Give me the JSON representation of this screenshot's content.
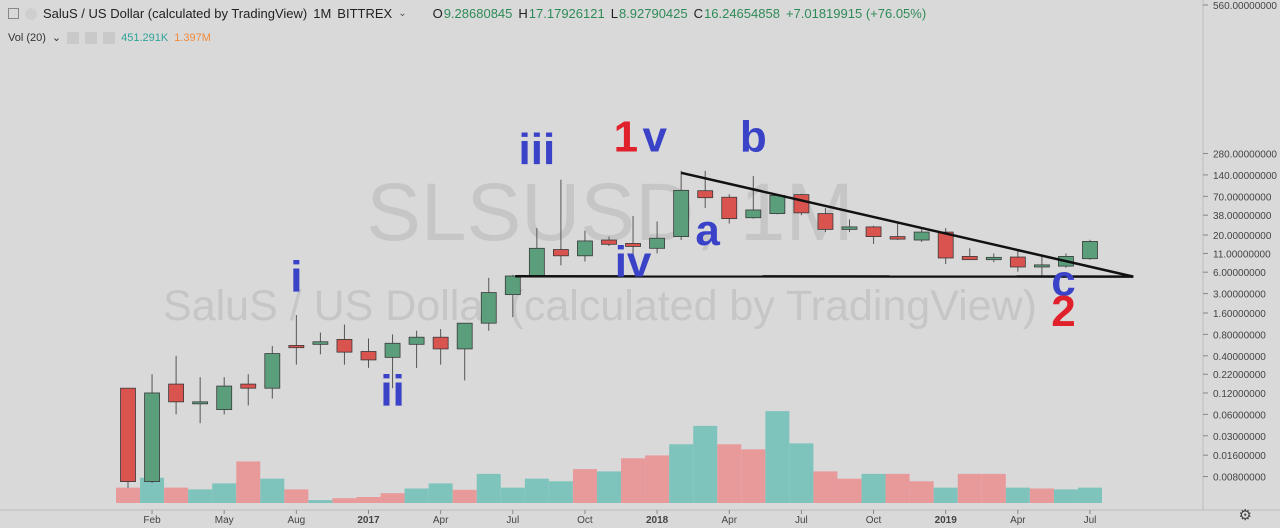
{
  "header": {
    "title": "SaluS / US Dollar (calculated by TradingView)",
    "interval": "1M",
    "exchange": "BITTREX",
    "o_label": "O",
    "o": "9.28680845",
    "h_label": "H",
    "h": "17.17926121",
    "l_label": "L",
    "l": "8.92790425",
    "c_label": "C",
    "c": "16.24654858",
    "change": "+7.01819915 (+76.05%)"
  },
  "volume_legend": {
    "label": "Vol (20)",
    "v1": "451.291K",
    "v2": "1.397M"
  },
  "watermark": {
    "line1": "SLSUSD, 1M",
    "line2": "SaluS / US Dollar (calculated by TradingView)"
  },
  "colors": {
    "up": "#5b9e7c",
    "down": "#d9534f",
    "vol_up": "#7ec4bd",
    "vol_down": "#e8999a",
    "wave_blue": "#3a43c8",
    "wave_red": "#e0202a"
  },
  "chart_data": {
    "type": "candlestick",
    "x_axis_labels": [
      "Feb",
      "May",
      "Aug",
      "2017",
      "Apr",
      "Jul",
      "Oct",
      "2018",
      "Apr",
      "Jul",
      "Oct",
      "2019",
      "Apr",
      "Jul"
    ],
    "y_axis_labels": [
      "560.00000000",
      "280.00000000",
      "140.00000000",
      "70.00000000",
      "38.00000000",
      "20.00000000",
      "11.00000000",
      "6.00000000",
      "3.00000000",
      "1.60000000",
      "0.80000000",
      "0.40000000",
      "0.22000000",
      "0.12000000",
      "0.06000000",
      "0.03000000",
      "0.01600000",
      "0.00800000"
    ],
    "y_scale": "log",
    "candles": [
      {
        "o": 0.14,
        "h": 0.14,
        "l": 0.0055,
        "c": 0.0068
      },
      {
        "o": 0.0068,
        "h": 0.22,
        "l": 0.0065,
        "c": 0.12
      },
      {
        "o": 0.16,
        "h": 0.4,
        "l": 0.06,
        "c": 0.09
      },
      {
        "o": 0.09,
        "h": 0.2,
        "l": 0.045,
        "c": 0.09
      },
      {
        "o": 0.07,
        "h": 0.2,
        "l": 0.06,
        "c": 0.15
      },
      {
        "o": 0.16,
        "h": 0.22,
        "l": 0.08,
        "c": 0.14
      },
      {
        "o": 0.14,
        "h": 0.55,
        "l": 0.1,
        "c": 0.43
      },
      {
        "o": 0.56,
        "h": 1.5,
        "l": 0.3,
        "c": 0.52
      },
      {
        "o": 0.58,
        "h": 0.85,
        "l": 0.42,
        "c": 0.63
      },
      {
        "o": 0.68,
        "h": 1.1,
        "l": 0.3,
        "c": 0.45
      },
      {
        "o": 0.46,
        "h": 0.7,
        "l": 0.27,
        "c": 0.35
      },
      {
        "o": 0.38,
        "h": 0.8,
        "l": 0.14,
        "c": 0.6
      },
      {
        "o": 0.58,
        "h": 0.9,
        "l": 0.27,
        "c": 0.73
      },
      {
        "o": 0.73,
        "h": 0.95,
        "l": 0.3,
        "c": 0.5
      },
      {
        "o": 0.5,
        "h": 1.0,
        "l": 0.18,
        "c": 1.15
      },
      {
        "o": 1.15,
        "h": 5.0,
        "l": 0.9,
        "c": 3.1
      },
      {
        "o": 2.9,
        "h": 5.5,
        "l": 1.4,
        "c": 5.3
      },
      {
        "o": 5.3,
        "h": 25,
        "l": 5.1,
        "c": 13
      },
      {
        "o": 12.5,
        "h": 120,
        "l": 7.5,
        "c": 10.2
      },
      {
        "o": 10.2,
        "h": 23,
        "l": 8.5,
        "c": 16.5
      },
      {
        "o": 17,
        "h": 19,
        "l": 14,
        "c": 14.8
      },
      {
        "o": 15.2,
        "h": 37,
        "l": 11,
        "c": 13.8
      },
      {
        "o": 13,
        "h": 31,
        "l": 11,
        "c": 18
      },
      {
        "o": 19,
        "h": 160,
        "l": 17,
        "c": 85
      },
      {
        "o": 84,
        "h": 160,
        "l": 48,
        "c": 67
      },
      {
        "o": 68,
        "h": 75,
        "l": 29,
        "c": 34
      },
      {
        "o": 35,
        "h": 135,
        "l": 34,
        "c": 45
      },
      {
        "o": 40,
        "h": 74,
        "l": 39,
        "c": 72
      },
      {
        "o": 74,
        "h": 76,
        "l": 38,
        "c": 41
      },
      {
        "o": 40,
        "h": 48,
        "l": 22,
        "c": 24
      },
      {
        "o": 24,
        "h": 33,
        "l": 22,
        "c": 26
      },
      {
        "o": 26,
        "h": 27,
        "l": 15,
        "c": 19
      },
      {
        "o": 19,
        "h": 30,
        "l": 17,
        "c": 17.5
      },
      {
        "o": 17,
        "h": 25,
        "l": 16,
        "c": 22
      },
      {
        "o": 22,
        "h": 25,
        "l": 7.8,
        "c": 9.5
      },
      {
        "o": 10,
        "h": 13,
        "l": 8.9,
        "c": 9
      },
      {
        "o": 9,
        "h": 11,
        "l": 8.3,
        "c": 9.7
      },
      {
        "o": 9.8,
        "h": 12,
        "l": 6.1,
        "c": 7.1
      },
      {
        "o": 7.1,
        "h": 10.5,
        "l": 5.4,
        "c": 7.6
      },
      {
        "o": 7.3,
        "h": 11,
        "l": 6.9,
        "c": 10
      },
      {
        "o": 9.29,
        "h": 17.18,
        "l": 8.93,
        "c": 16.25
      }
    ],
    "volume": [
      {
        "v": 0.0068,
        "up": false
      },
      {
        "v": 0.0096,
        "up": true
      },
      {
        "v": 0.0068,
        "up": false
      },
      {
        "v": 0.0064,
        "up": true
      },
      {
        "v": 0.0079,
        "up": true
      },
      {
        "v": 0.017,
        "up": false
      },
      {
        "v": 0.0093,
        "up": true
      },
      {
        "v": 0.0064,
        "up": false
      },
      {
        "v": 0.0044,
        "up": true
      },
      {
        "v": 0.0047,
        "up": false
      },
      {
        "v": 0.0049,
        "up": false
      },
      {
        "v": 0.0056,
        "up": false
      },
      {
        "v": 0.0066,
        "up": true
      },
      {
        "v": 0.0079,
        "up": true
      },
      {
        "v": 0.0063,
        "up": false
      },
      {
        "v": 0.011,
        "up": true
      },
      {
        "v": 0.0068,
        "up": true
      },
      {
        "v": 0.0093,
        "up": true
      },
      {
        "v": 0.0085,
        "up": true
      },
      {
        "v": 0.013,
        "up": false
      },
      {
        "v": 0.012,
        "up": true
      },
      {
        "v": 0.019,
        "up": false
      },
      {
        "v": 0.021,
        "up": false
      },
      {
        "v": 0.031,
        "up": true
      },
      {
        "v": 0.059,
        "up": true
      },
      {
        "v": 0.031,
        "up": false
      },
      {
        "v": 0.026,
        "up": false
      },
      {
        "v": 0.099,
        "up": true
      },
      {
        "v": 0.032,
        "up": true
      },
      {
        "v": 0.012,
        "up": false
      },
      {
        "v": 0.0093,
        "up": false
      },
      {
        "v": 0.011,
        "up": true
      },
      {
        "v": 0.011,
        "up": false
      },
      {
        "v": 0.0085,
        "up": false
      },
      {
        "v": 0.0068,
        "up": true
      },
      {
        "v": 0.011,
        "up": false
      },
      {
        "v": 0.011,
        "up": false
      },
      {
        "v": 0.0068,
        "up": true
      },
      {
        "v": 0.0066,
        "up": false
      },
      {
        "v": 0.0064,
        "up": true
      },
      {
        "v": 0.0068,
        "up": true
      }
    ],
    "volume_ylim": [
      0.0045,
      0.11
    ],
    "trendlines": [
      {
        "name": "upper-resistance",
        "points": [
          {
            "i": 23,
            "v": 150
          },
          {
            "i": 41.8,
            "v": 5.2
          }
        ]
      },
      {
        "name": "lower-support",
        "points": [
          {
            "i": 16.1,
            "v": 5.25
          },
          {
            "i": 41.8,
            "v": 5.2
          }
        ]
      }
    ],
    "wave_labels": [
      {
        "text": "i",
        "i": 7,
        "v": 3.2,
        "color": "blue"
      },
      {
        "text": "ii",
        "i": 11,
        "v": 0.08,
        "color": "blue"
      },
      {
        "text": "iii",
        "i": 17,
        "v": 200,
        "color": "blue"
      },
      {
        "text": "iv",
        "i": 21,
        "v": 5.2,
        "color": "blue"
      },
      {
        "text": "1",
        "i": 20.7,
        "v": 300,
        "color": "red"
      },
      {
        "text": "v",
        "i": 21.9,
        "v": 300,
        "color": "blue"
      },
      {
        "text": "a",
        "i": 24.1,
        "v": 14.5,
        "color": "blue"
      },
      {
        "text": "b",
        "i": 26,
        "v": 300,
        "color": "blue"
      },
      {
        "text": "c",
        "i": 38.9,
        "v": 2.8,
        "color": "blue"
      },
      {
        "text": "2",
        "i": 38.9,
        "v": 1.05,
        "color": "red"
      }
    ]
  }
}
